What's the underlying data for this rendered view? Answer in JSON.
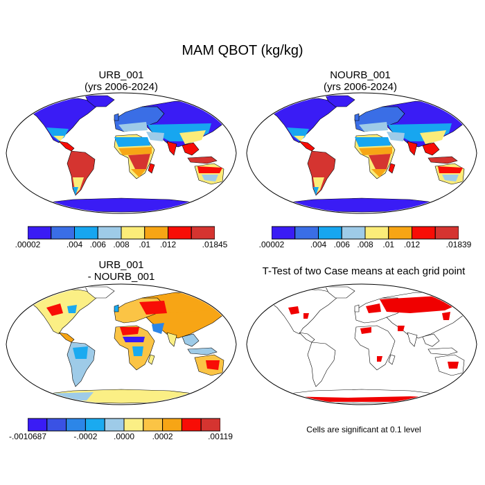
{
  "figure": {
    "title": "MAM QBOT (kg/kg)",
    "significance_note": "Cells are significant at 0.1 level"
  },
  "panels": [
    {
      "title_line1": "URB_001",
      "title_line2": "(yrs 2006-2024)"
    },
    {
      "title_line1": "NOURB_001",
      "title_line2": "(yrs 2006-2024)"
    },
    {
      "title_line1": "URB_001",
      "title_line2": "- NOURB_001"
    },
    {
      "title_line1": "T-Test of two Case means at each grid point",
      "title_line2": ""
    }
  ],
  "chart_data": [
    {
      "type": "heatmap",
      "title": "URB_001 (yrs 2006-2024)",
      "variable": "QBOT",
      "units": "kg/kg",
      "season": "MAM",
      "colorbar": {
        "labels": [
          ".00002",
          ".004",
          ".006",
          ".008",
          ".01",
          ".012",
          ".01845"
        ],
        "label_bins": [
          0,
          2,
          3,
          4,
          5,
          6,
          8
        ],
        "colors": [
          "#3a1cf5",
          "#3a6ee6",
          "#17a6f0",
          "#9ecbe8",
          "#fbec79",
          "#f7a515",
          "#f80d06",
          "#d53430"
        ]
      }
    },
    {
      "type": "heatmap",
      "title": "NOURB_001 (yrs 2006-2024)",
      "variable": "QBOT",
      "units": "kg/kg",
      "season": "MAM",
      "colorbar": {
        "labels": [
          ".00002",
          ".004",
          ".006",
          ".008",
          ".01",
          ".012",
          ".01839"
        ],
        "label_bins": [
          0,
          2,
          3,
          4,
          5,
          6,
          8
        ],
        "colors": [
          "#3a1cf5",
          "#3a6ee6",
          "#17a6f0",
          "#9ecbe8",
          "#fbec79",
          "#f7a515",
          "#f80d06",
          "#d53430"
        ]
      }
    },
    {
      "type": "heatmap",
      "title": "URB_001 - NOURB_001",
      "variable": "QBOT difference",
      "units": "kg/kg",
      "colorbar": {
        "labels": [
          "-.0010687",
          "-.0002",
          ".0000",
          ".0002",
          ".00119"
        ],
        "label_bins": [
          0,
          3,
          5,
          7,
          10
        ],
        "colors": [
          "#3a1cf5",
          "#3a52e4",
          "#2c86e8",
          "#1aaaf0",
          "#9ecbe8",
          "#fbef85",
          "#fbc445",
          "#f7a515",
          "#f80d06",
          "#d53430"
        ]
      }
    },
    {
      "type": "heatmap",
      "title": "T-Test of two Case means at each grid point",
      "significance_level": 0.1,
      "significant_color": "#f00000"
    }
  ]
}
